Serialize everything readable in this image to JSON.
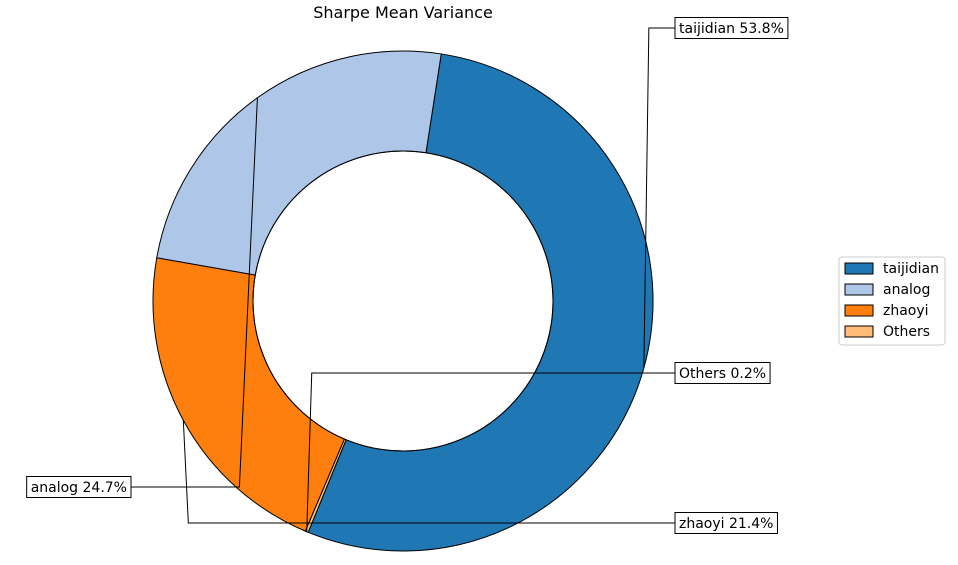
{
  "chart_data": {
    "type": "pie",
    "donut": true,
    "title": "Sharpe Mean Variance",
    "start_angle_deg": 81.2,
    "direction": "clockwise",
    "slices": [
      {
        "name": "taijidian",
        "value": 53.8,
        "label": "taijidian 53.8%",
        "color": "#1f77b4"
      },
      {
        "name": "Others",
        "value": 0.2,
        "label": "Others 0.2%",
        "color": "#ffbb78"
      },
      {
        "name": "zhaoyi",
        "value": 21.4,
        "label": "zhaoyi 21.4%",
        "color": "#ff7f0e"
      },
      {
        "name": "analog",
        "value": 24.7,
        "label": "analog 24.7%",
        "color": "#aec7e8"
      }
    ],
    "legend": {
      "placement": "right",
      "entries": [
        {
          "name": "taijidian",
          "color": "#1f77b4"
        },
        {
          "name": "analog",
          "color": "#aec7e8"
        },
        {
          "name": "zhaoyi",
          "color": "#ff7f0e"
        },
        {
          "name": "Others",
          "color": "#ffbb78"
        }
      ]
    }
  }
}
